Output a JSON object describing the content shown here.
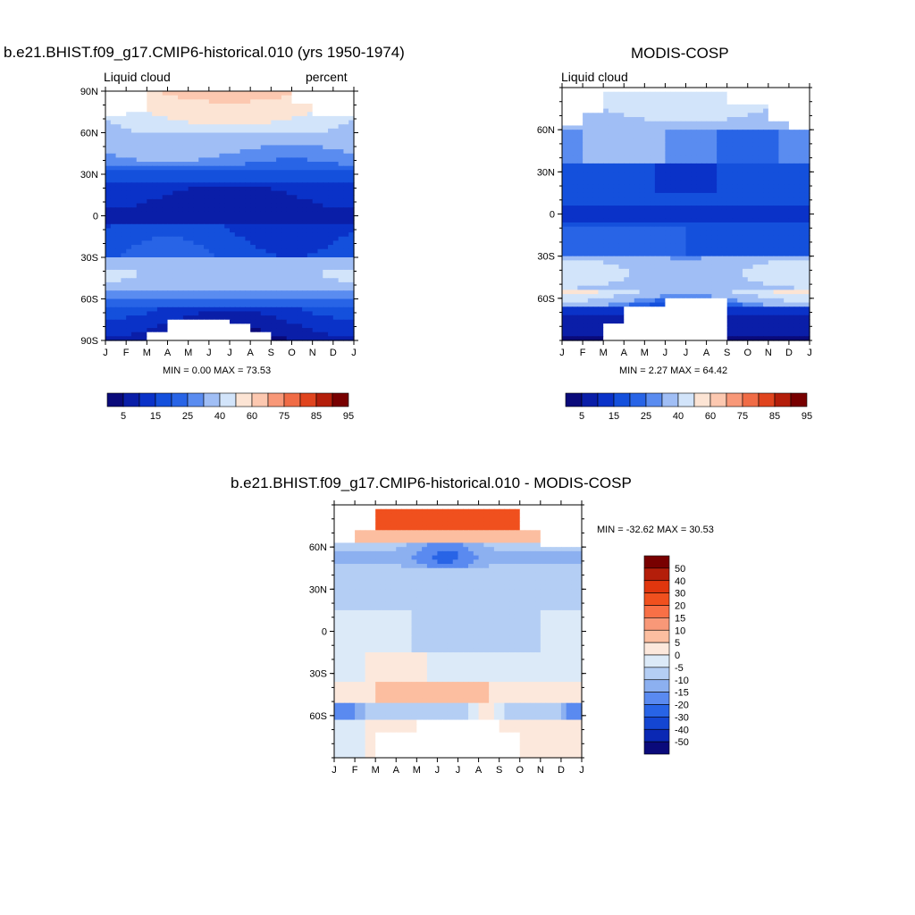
{
  "chart_data": [
    {
      "type": "heatmap",
      "title": "b.e21.BHIST.f09_g17.CMIP6-historical.010 (yrs 1950-1974)",
      "left_label": "Liquid cloud",
      "right_label": "percent",
      "x_ticks": [
        "J",
        "F",
        "M",
        "A",
        "M",
        "J",
        "J",
        "A",
        "S",
        "O",
        "N",
        "D",
        "J"
      ],
      "y_ticks": [
        "90N",
        "60N",
        "30N",
        "0",
        "30S",
        "60S",
        "90S"
      ],
      "ylim": [
        -90,
        90
      ],
      "stats": "MIN =   0.00 MAX =  73.53",
      "colorbar_levels": [
        "5",
        "15",
        "25",
        "40",
        "60",
        "75",
        "85",
        "95"
      ],
      "min": 0.0,
      "max": 73.53
    },
    {
      "type": "heatmap",
      "title": "MODIS-COSP",
      "left_label": "Liquid cloud",
      "x_ticks": [
        "J",
        "F",
        "M",
        "A",
        "M",
        "J",
        "J",
        "A",
        "S",
        "O",
        "N",
        "D",
        "J"
      ],
      "y_ticks": [
        "60N",
        "30N",
        "0",
        "30S",
        "60S"
      ],
      "stats": "MIN =   2.27 MAX =  64.42",
      "colorbar_levels": [
        "5",
        "15",
        "25",
        "40",
        "60",
        "75",
        "85",
        "95"
      ],
      "min": 2.27,
      "max": 64.42
    },
    {
      "type": "heatmap",
      "title": "b.e21.BHIST.f09_g17.CMIP6-historical.010 - MODIS-COSP",
      "x_ticks": [
        "J",
        "F",
        "M",
        "A",
        "M",
        "J",
        "J",
        "A",
        "S",
        "O",
        "N",
        "D",
        "J"
      ],
      "y_ticks": [
        "60N",
        "30N",
        "0",
        "30S",
        "60S"
      ],
      "stats": "MIN = -32.62 MAX =  30.53",
      "colorbar_levels": [
        "50",
        "40",
        "30",
        "20",
        "15",
        "10",
        "5",
        "0",
        "-5",
        "-10",
        "-15",
        "-20",
        "-30",
        "-40",
        "-50"
      ],
      "min": -32.62,
      "max": 30.53
    }
  ],
  "colors": {
    "abs_scale": [
      "#0a0a7a",
      "#0a1ea8",
      "#0a32c8",
      "#1450dc",
      "#2864e6",
      "#5a8cf0",
      "#a0bef5",
      "#d2e4fa",
      "#fce4d4",
      "#fcc8b0",
      "#f89878",
      "#f06c46",
      "#e0441e",
      "#b41e0a",
      "#780000"
    ],
    "diff_scale": [
      "#780000",
      "#b41e0a",
      "#e0360e",
      "#f0501e",
      "#f87046",
      "#f89878",
      "#fcbea0",
      "#fce8dc",
      "#dceaf8",
      "#b4cef4",
      "#8cb0f0",
      "#5a8af0",
      "#2864e6",
      "#1446d2",
      "#0a28b4",
      "#0a0a7a"
    ]
  }
}
